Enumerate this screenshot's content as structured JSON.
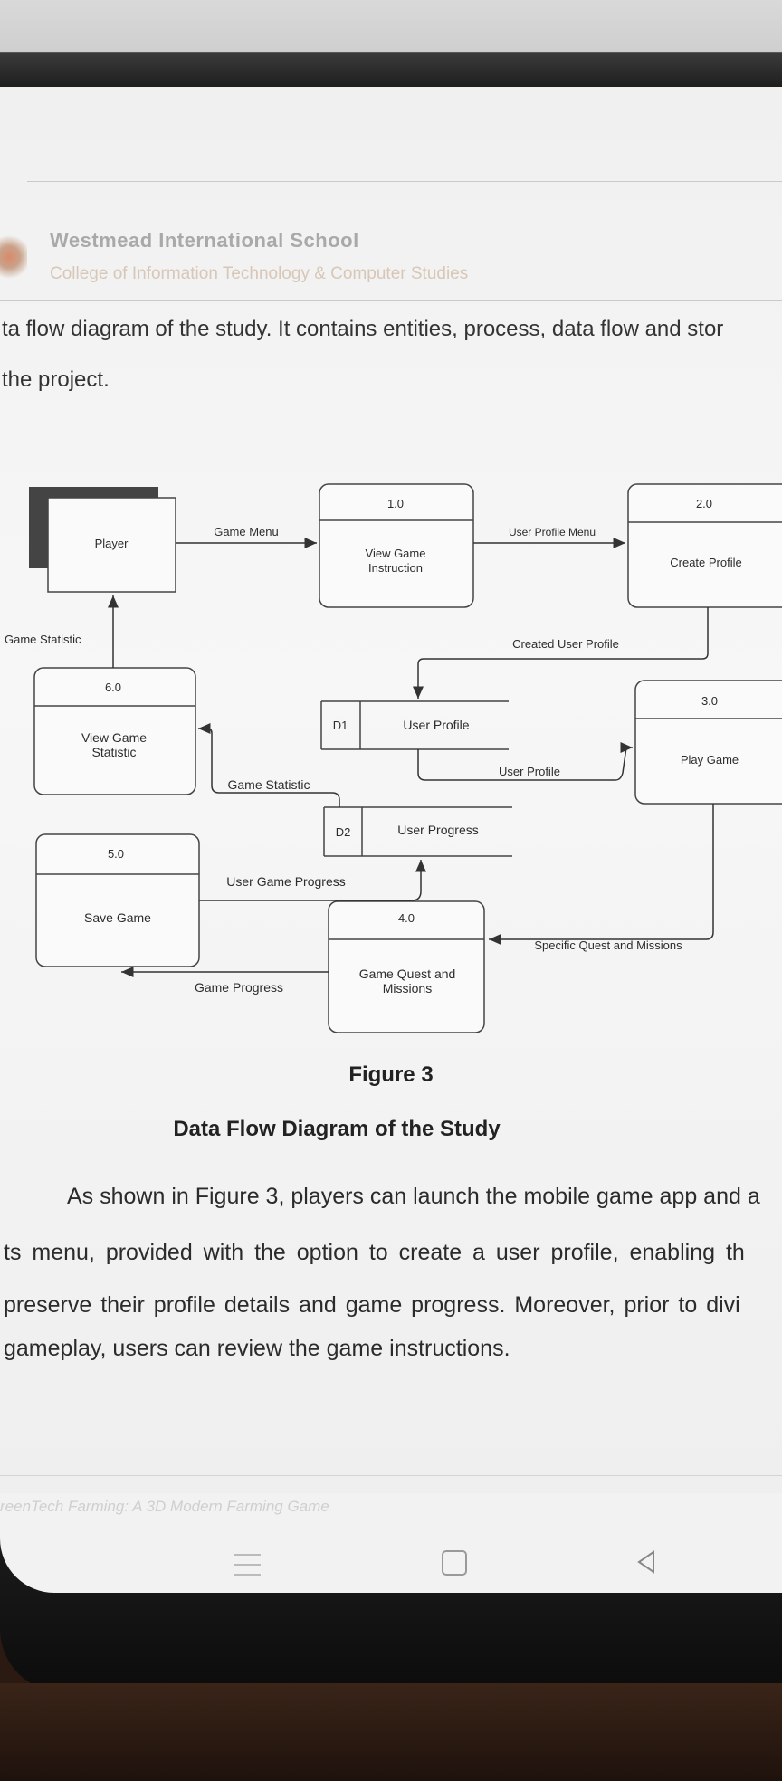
{
  "header": {
    "school_name": "Westmead International School",
    "college_name": "College of Information Technology & Computer Studies"
  },
  "intro": {
    "line1": "ta flow diagram of the study. It contains entities, process, data flow and stor",
    "line2": "the project."
  },
  "diagram": {
    "entity_player": "Player",
    "p1_num": "1.0",
    "p1_name_a": "View Game",
    "p1_name_b": "Instruction",
    "p2_num": "2.0",
    "p2_name": "Create Profile",
    "p3_num": "3.0",
    "p3_name": "Play Game",
    "p4_num": "4.0",
    "p4_name_a": "Game Quest and",
    "p4_name_b": "Missions",
    "p5_num": "5.0",
    "p5_name": "Save Game",
    "p6_num": "6.0",
    "p6_name_a": "View Game",
    "p6_name_b": "Statistic",
    "d1_id": "D1",
    "d1_name": "User Profile",
    "d2_id": "D2",
    "d2_name": "User Progress",
    "flow_game_menu": "Game Menu",
    "flow_user_profile_menu": "User Profile Menu",
    "flow_created_user_profile": "Created User Profile",
    "flow_user_profile": "User Profile",
    "flow_game_statistic_player": "Game Statistic",
    "flow_game_statistic_store": "Game Statistic",
    "flow_user_game_progress": "User Game Progress",
    "flow_specific_quest": "Specific Quest and Missions",
    "flow_game_progress": "Game Progress"
  },
  "figure": {
    "label": "Figure 3",
    "caption": "Data Flow Diagram of the Study"
  },
  "body": {
    "line1": "As shown in Figure 3, players can launch the mobile game app and a",
    "line2": "ts menu, provided with the option to create a user profile, enabling th",
    "line3": "preserve their profile details and game progress. Moreover, prior to divi",
    "line4": "gameplay, users can review the game instructions."
  },
  "footer": {
    "text": "reenTech Farming: A 3D Modern Farming Game"
  },
  "navbar": {
    "icons": [
      "menu-icon",
      "home-icon",
      "back-icon"
    ]
  }
}
